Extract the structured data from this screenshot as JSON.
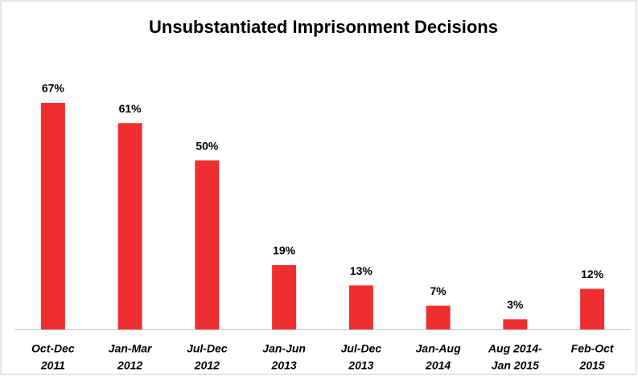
{
  "chart_data": {
    "type": "bar",
    "title": "Unsubstantiated Imprisonment Decisions",
    "categories": [
      [
        "Oct-Dec",
        "2011"
      ],
      [
        "Jan-Mar",
        "2012"
      ],
      [
        "Jul-Dec",
        "2012"
      ],
      [
        "Jan-Jun",
        "2013"
      ],
      [
        "Jul-Dec",
        "2013"
      ],
      [
        "Jan-Aug",
        "2014"
      ],
      [
        "Aug 2014-",
        "Jan 2015"
      ],
      [
        "Feb-Oct",
        "2015"
      ]
    ],
    "values": [
      67,
      61,
      50,
      19,
      13,
      7,
      3,
      12
    ],
    "value_labels": [
      "67%",
      "61%",
      "50%",
      "19%",
      "13%",
      "7%",
      "3%",
      "12%"
    ],
    "color": "#ef2f2f"
  }
}
